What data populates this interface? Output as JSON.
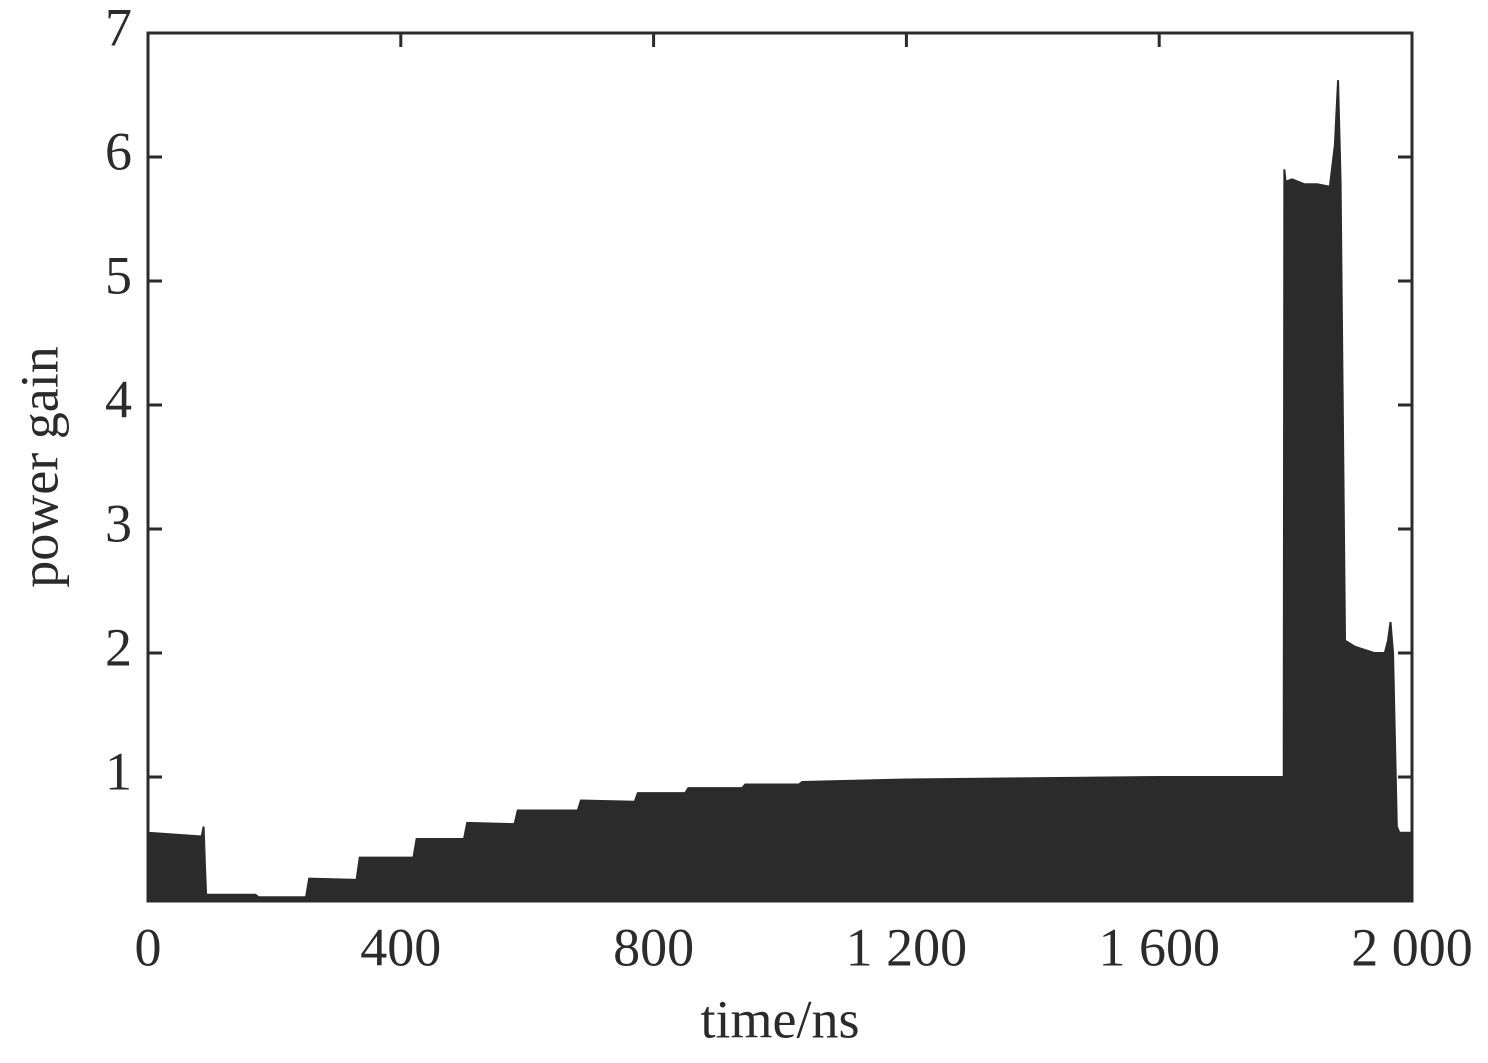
{
  "chart_data": {
    "type": "area",
    "x_label": "time/ns",
    "y_label": "power gain",
    "xlim": [
      0,
      2000
    ],
    "ylim": [
      0,
      7
    ],
    "xticks": [
      0,
      400,
      800,
      {
        "value": 1200,
        "label": "1 200"
      },
      {
        "value": 1600,
        "label": "1 600"
      },
      {
        "value": 2000,
        "label": "2 000"
      }
    ],
    "yticks": [
      1,
      2,
      3,
      4,
      5,
      6,
      7
    ],
    "color": "#2b2b2b",
    "x": [
      0,
      85,
      88,
      90,
      92,
      170,
      175,
      250,
      255,
      330,
      335,
      420,
      425,
      500,
      505,
      580,
      585,
      680,
      685,
      770,
      775,
      850,
      855,
      940,
      945,
      1030,
      1035,
      1200,
      1400,
      1600,
      1797,
      1798,
      1800,
      1810,
      1830,
      1850,
      1870,
      1878,
      1883,
      1887,
      1894,
      1910,
      1940,
      1957,
      1962,
      1966,
      1970,
      1976,
      1980,
      2000
    ],
    "values": [
      0.55,
      0.52,
      0.6,
      0.3,
      0.05,
      0.05,
      0.03,
      0.03,
      0.18,
      0.17,
      0.35,
      0.35,
      0.5,
      0.5,
      0.63,
      0.62,
      0.73,
      0.73,
      0.81,
      0.8,
      0.87,
      0.87,
      0.91,
      0.91,
      0.94,
      0.94,
      0.96,
      0.98,
      0.99,
      1.0,
      1.0,
      5.9,
      5.8,
      5.82,
      5.78,
      5.78,
      5.76,
      6.1,
      6.62,
      5.8,
      2.1,
      2.05,
      2.0,
      2.0,
      2.1,
      2.25,
      2.0,
      0.6,
      0.55,
      0.55
    ]
  }
}
